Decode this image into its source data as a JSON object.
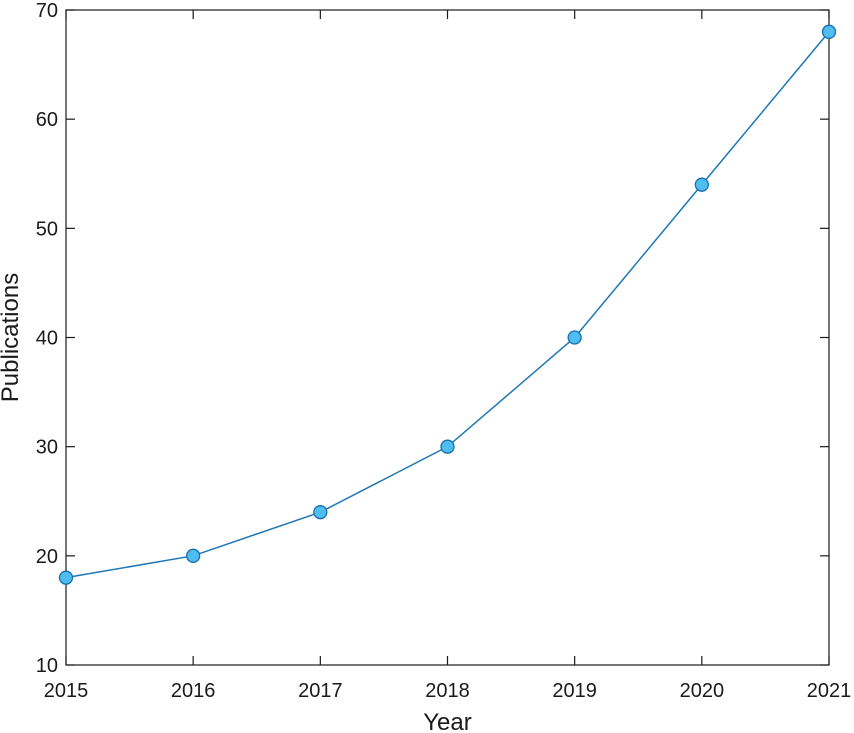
{
  "chart_data": {
    "type": "line",
    "title": "",
    "xlabel": "Year",
    "ylabel": "Publications",
    "x": [
      2015,
      2016,
      2017,
      2018,
      2019,
      2020,
      2021
    ],
    "series": [
      {
        "values": [
          18,
          20,
          24,
          30,
          40,
          54,
          68
        ]
      }
    ],
    "xlim": [
      2015,
      2021
    ],
    "ylim": [
      10,
      70
    ],
    "xticks": [
      "2015",
      "2016",
      "2017",
      "2018",
      "2019",
      "2020",
      "2021"
    ],
    "yticks": [
      "10",
      "20",
      "30",
      "40",
      "50",
      "60",
      "70"
    ],
    "grid": false,
    "legend": "none",
    "colors": {
      "line": "#1f78b4",
      "marker_fill": "#4dbdf2",
      "marker_edge": "#1a6fa8",
      "axis": "#1a1a1a"
    }
  }
}
